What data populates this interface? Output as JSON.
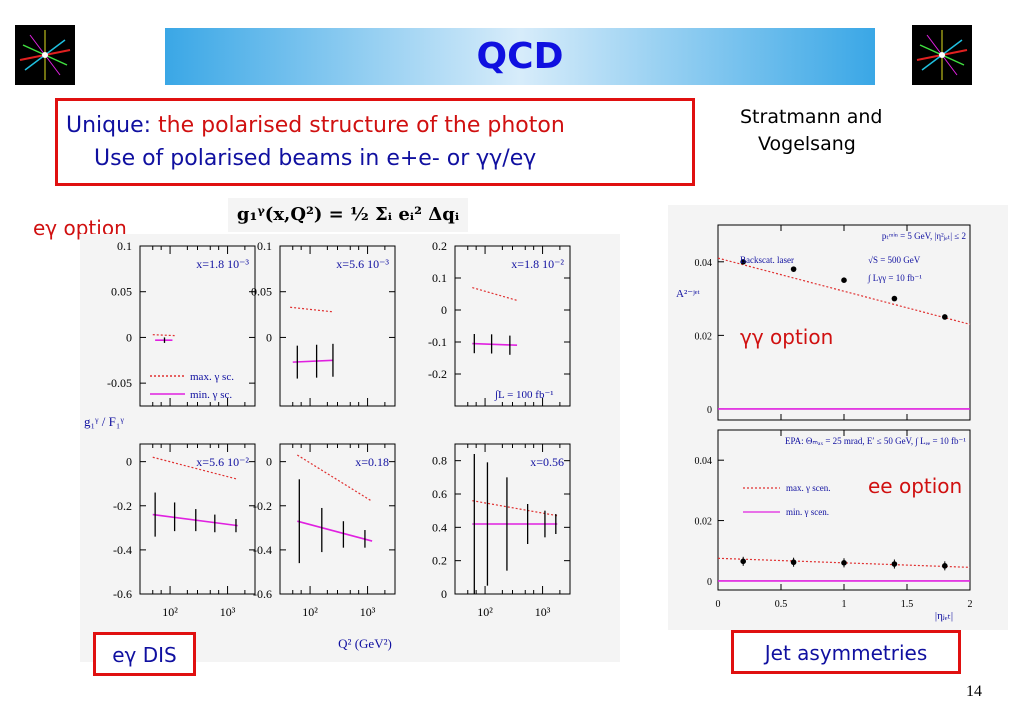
{
  "slide": {
    "title": "QCD",
    "intro_line1_prefix": "Unique: ",
    "intro_line1_red": "the polarised structure of the photon",
    "intro_line2": "Use of polarised beams in e+e- or γγ/eγ",
    "credit_line1": "Stratmann and",
    "credit_line2": "Vogelsang",
    "formula": "g₁ᵞ(x,Q²) = ½ Σᵢ eᵢ² Δqᵢ",
    "label_egamma_option": "eγ option",
    "label_gammagamma_option": "γγ option",
    "label_ee_option": "ee option",
    "box_egamma_dis": "eγ DIS",
    "box_jet_asymmetries": "Jet asymmetries",
    "page_number": "14",
    "colors": {
      "accent_red": "#e01010",
      "title_blue": "#1010e0",
      "max_curve": "#e03030",
      "min_curve": "#e020e0"
    }
  },
  "chart_data": [
    {
      "type": "line",
      "id": "left-grid",
      "x_scale": "log",
      "xlabel": "Q² (GeV²)",
      "ylabel": "g₁ᵞ / F₁ᵞ",
      "x_ticks": [
        "10²",
        "10³"
      ],
      "legend": [
        {
          "name": "max. γ sc.",
          "style": "dotted"
        },
        {
          "name": "min. γ sc.",
          "style": "solid"
        }
      ],
      "annotation": "∫L = 100 fb⁻¹",
      "panels": [
        {
          "label": "x=1.8 10⁻³",
          "y_ticks": [
            "0.1",
            "0.05",
            "0",
            "-0.05"
          ],
          "ylim": [
            -0.075,
            0.1
          ],
          "max": {
            "x": [
              50,
              120
            ],
            "y": [
              0.003,
              0.002
            ]
          },
          "min": {
            "x": [
              55,
              110
            ],
            "y": [
              -0.003,
              -0.003
            ]
          },
          "errbars": [
            {
              "x": 80,
              "y": -0.003,
              "err": 0.003
            }
          ]
        },
        {
          "label": "x=5.6 10⁻³",
          "y_ticks": [
            "0.1",
            "0.05",
            "0"
          ],
          "ylim": [
            -0.075,
            0.1
          ],
          "max": {
            "x": [
              45,
              250
            ],
            "y": [
              0.033,
              0.028
            ]
          },
          "min": {
            "x": [
              50,
              250
            ],
            "y": [
              -0.027,
              -0.025
            ]
          },
          "errbars": [
            {
              "x": 60,
              "y": -0.027,
              "err": 0.018
            },
            {
              "x": 130,
              "y": -0.026,
              "err": 0.018
            },
            {
              "x": 250,
              "y": -0.025,
              "err": 0.018
            }
          ]
        },
        {
          "label": "x=1.8 10⁻²",
          "y_ticks": [
            "0.2",
            "0.1",
            "0",
            "-0.1",
            "-0.2"
          ],
          "ylim": [
            -0.3,
            0.2
          ],
          "max": {
            "x": [
              60,
              360
            ],
            "y": [
              0.07,
              0.03
            ]
          },
          "min": {
            "x": [
              60,
              360
            ],
            "y": [
              -0.105,
              -0.11
            ]
          },
          "errbars": [
            {
              "x": 65,
              "y": -0.105,
              "err": 0.03
            },
            {
              "x": 130,
              "y": -0.106,
              "err": 0.03
            },
            {
              "x": 270,
              "y": -0.11,
              "err": 0.03
            }
          ]
        },
        {
          "label": "x=5.6 10⁻²",
          "y_ticks": [
            "0",
            "-0.2",
            "-0.4",
            "-0.6"
          ],
          "ylim": [
            -0.6,
            0.08
          ],
          "max": {
            "x": [
              50,
              1500
            ],
            "y": [
              0.02,
              -0.08
            ]
          },
          "min": {
            "x": [
              50,
              1500
            ],
            "y": [
              -0.24,
              -0.29
            ]
          },
          "errbars": [
            {
              "x": 55,
              "y": -0.24,
              "err": 0.1
            },
            {
              "x": 120,
              "y": -0.25,
              "err": 0.065
            },
            {
              "x": 280,
              "y": -0.265,
              "err": 0.05
            },
            {
              "x": 600,
              "y": -0.28,
              "err": 0.04
            },
            {
              "x": 1400,
              "y": -0.29,
              "err": 0.03
            }
          ]
        },
        {
          "label": "x=0.18",
          "y_ticks": [
            "0",
            "-0.2",
            "-0.4",
            "-0.6"
          ],
          "ylim": [
            -0.6,
            0.08
          ],
          "max": {
            "x": [
              60,
              1200
            ],
            "y": [
              0.03,
              -0.18
            ]
          },
          "min": {
            "x": [
              60,
              1200
            ],
            "y": [
              -0.27,
              -0.36
            ]
          },
          "errbars": [
            {
              "x": 65,
              "y": -0.27,
              "err": 0.19
            },
            {
              "x": 160,
              "y": -0.31,
              "err": 0.1
            },
            {
              "x": 380,
              "y": -0.33,
              "err": 0.06
            },
            {
              "x": 900,
              "y": -0.35,
              "err": 0.04
            }
          ]
        },
        {
          "label": "x=0.56",
          "y_ticks": [
            "0.8",
            "0.6",
            "0.4",
            "0.2",
            "0"
          ],
          "ylim": [
            0,
            0.9
          ],
          "max": {
            "x": [
              60,
              1800
            ],
            "y": [
              0.56,
              0.47
            ]
          },
          "min": {
            "x": [
              60,
              1800
            ],
            "y": [
              0.42,
              0.42
            ]
          },
          "errbars": [
            {
              "x": 65,
              "y": 0.42,
              "err": 0.42
            },
            {
              "x": 110,
              "y": 0.42,
              "err": 0.37
            },
            {
              "x": 240,
              "y": 0.42,
              "err": 0.28
            },
            {
              "x": 550,
              "y": 0.42,
              "err": 0.12
            },
            {
              "x": 1100,
              "y": 0.42,
              "err": 0.08
            },
            {
              "x": 1700,
              "y": 0.42,
              "err": 0.06
            }
          ]
        }
      ]
    },
    {
      "type": "line",
      "id": "right-jet",
      "xlabel": "|ηⱼₑₜ|",
      "ylabel": "A²⁻ʲᵉᵗ",
      "x_ticks": [
        "0",
        "0.5",
        "1",
        "1.5",
        "2"
      ],
      "xlim": [
        0,
        2
      ],
      "panels": [
        {
          "header": "pₜᵐⁱⁿ = 5 GeV, |η²ⱼₑₜ| ≤ 2",
          "notes": [
            "Backscat. laser",
            "√S = 500 GeV",
            "∫ Lγγ = 10 fb⁻¹"
          ],
          "y_ticks": [
            "0.04",
            "0.02",
            "0"
          ],
          "ylim": [
            -0.003,
            0.05
          ],
          "max": {
            "x": [
              0,
              2.0
            ],
            "y": [
              0.041,
              0.023
            ]
          },
          "min": {
            "x": [
              0,
              2.0
            ],
            "y": [
              0,
              0
            ]
          },
          "points": {
            "x": [
              0.2,
              0.6,
              1.0,
              1.4,
              1.8
            ],
            "y": [
              0.04,
              0.038,
              0.035,
              0.03,
              0.025
            ]
          }
        },
        {
          "header": "EPA: Θₘₐₓ = 25 mrad, E′ ≤ 50 GeV, ∫ Lₑₑ = 10 fb⁻¹",
          "legend": [
            {
              "name": "max. γ scen.",
              "style": "dotted"
            },
            {
              "name": "min. γ scen.",
              "style": "solid"
            }
          ],
          "y_ticks": [
            "0.04",
            "0.02",
            "0"
          ],
          "ylim": [
            -0.003,
            0.05
          ],
          "max": {
            "x": [
              0,
              2.0
            ],
            "y": [
              0.0075,
              0.0045
            ]
          },
          "min": {
            "x": [
              0,
              2.0
            ],
            "y": [
              0,
              0
            ]
          },
          "points": {
            "x": [
              0.2,
              0.6,
              1.0,
              1.4,
              1.8
            ],
            "y": [
              0.0065,
              0.0062,
              0.006,
              0.0056,
              0.005
            ],
            "err": 0.0015
          }
        }
      ]
    }
  ]
}
